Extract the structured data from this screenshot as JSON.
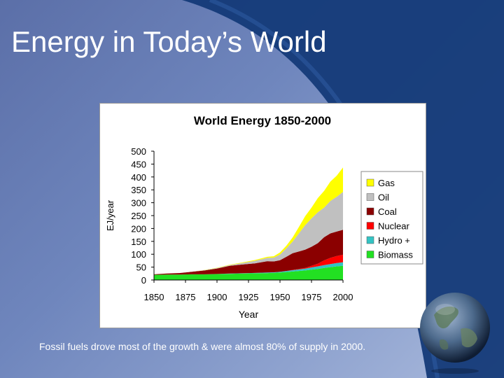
{
  "slide": {
    "title": "Energy in Today’s World",
    "caption": "Fossil fuels drove most of the growth & were almost 80% of supply in 2000."
  },
  "chart_data": {
    "type": "area",
    "stacked": true,
    "title": "World Energy 1850-2000",
    "xlabel": "Year",
    "ylabel": "EJ/year",
    "xlim": [
      1850,
      2000
    ],
    "ylim": [
      0,
      500
    ],
    "xticks": [
      1850,
      1875,
      1900,
      1925,
      1950,
      1975,
      2000
    ],
    "yticks": [
      0,
      50,
      100,
      150,
      200,
      250,
      300,
      350,
      400,
      450,
      500
    ],
    "grid": false,
    "legend_position": "right",
    "x": [
      1850,
      1860,
      1870,
      1880,
      1890,
      1900,
      1910,
      1920,
      1930,
      1940,
      1945,
      1950,
      1955,
      1960,
      1965,
      1970,
      1975,
      1980,
      1985,
      1990,
      1995,
      2000
    ],
    "series": [
      {
        "name": "Biomass",
        "color": "#22e022",
        "values": [
          20,
          21,
          21,
          22,
          22,
          23,
          24,
          25,
          26,
          27,
          28,
          29,
          31,
          33,
          35,
          37,
          40,
          43,
          47,
          50,
          53,
          55
        ]
      },
      {
        "name": "Hydro +",
        "color": "#33c4c4",
        "values": [
          0,
          0,
          0,
          0,
          0,
          0.5,
          1,
          1,
          1.5,
          2,
          2,
          3,
          4,
          5,
          6,
          7,
          9,
          10,
          11,
          12,
          13,
          14
        ]
      },
      {
        "name": "Nuclear",
        "color": "#ff0000",
        "values": [
          0,
          0,
          0,
          0,
          0,
          0,
          0,
          0,
          0,
          0,
          0,
          0,
          0,
          1,
          2,
          3,
          6,
          10,
          18,
          24,
          27,
          29
        ]
      },
      {
        "name": "Coal",
        "color": "#8b0000",
        "values": [
          2,
          4,
          6,
          10,
          15,
          21,
          30,
          34,
          37,
          44,
          42,
          45,
          55,
          65,
          68,
          71,
          74,
          80,
          90,
          95,
          95,
          97
        ]
      },
      {
        "name": "Oil",
        "color": "#c0c0c0",
        "values": [
          0,
          0,
          0,
          0.5,
          1,
          2,
          3,
          6,
          10,
          13,
          15,
          22,
          33,
          45,
          70,
          95,
          110,
          120,
          115,
          126,
          135,
          147
        ]
      },
      {
        "name": "Gas",
        "color": "#ffff00",
        "values": [
          0,
          0,
          0,
          0,
          0.5,
          1,
          1,
          2,
          3,
          4,
          5,
          8,
          10,
          16,
          25,
          35,
          42,
          55,
          65,
          75,
          82,
          95
        ]
      }
    ]
  }
}
